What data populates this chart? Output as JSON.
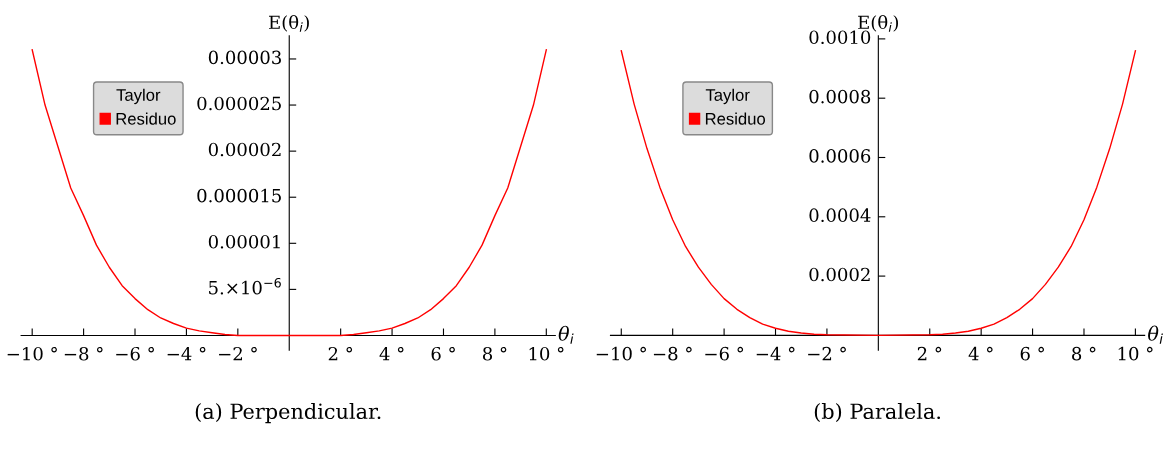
{
  "chart_data": [
    {
      "type": "line",
      "title": "(a) Perpendicular.",
      "xlabel": "θ$_{i}$",
      "ylabel": "E(θ$_{i}$)",
      "legend_title": "Taylor",
      "legend": "top left",
      "grid": false,
      "marker": "none",
      "line_style": "solid",
      "x": [
        -10,
        -9.5,
        -9,
        -8.5,
        -8,
        -7.5,
        -7,
        -6.5,
        -6,
        -5.5,
        -5,
        -4.5,
        -4,
        -3.5,
        -3,
        -2.5,
        -2,
        0,
        2,
        2.5,
        3,
        3.5,
        4,
        4.5,
        5,
        5.5,
        6,
        6.5,
        7,
        7.5,
        8,
        8.5,
        9,
        9.5,
        10
      ],
      "series": [
        {
          "name": "Residuo",
          "color": "#ff0000",
          "values": [
            3.1e-05,
            2.5e-05,
            2.05e-05,
            1.6e-05,
            1.3e-05,
            9.8e-06,
            7.4e-06,
            5.4e-06,
            4e-06,
            2.8e-06,
            1.9e-06,
            1.3e-06,
            8e-07,
            5e-07,
            3e-07,
            1e-07,
            0,
            0,
            0,
            1e-07,
            3e-07,
            5e-07,
            8e-07,
            1.3e-06,
            1.9e-06,
            2.8e-06,
            4e-06,
            5.4e-06,
            7.4e-06,
            9.8e-06,
            1.3e-05,
            1.6e-05,
            2.05e-05,
            2.5e-05,
            3.1e-05
          ]
        }
      ],
      "xlim": [
        -10.43,
        10.35
      ],
      "ylim": [
        -1.6e-06,
        3.25e-05
      ],
      "xticks": [
        {
          "value": -10,
          "label": "−10 °"
        },
        {
          "value": -8,
          "label": "−8 °"
        },
        {
          "value": -6,
          "label": "−6 °"
        },
        {
          "value": -4,
          "label": "−4 °"
        },
        {
          "value": -2,
          "label": "−2 °"
        },
        {
          "value": 2,
          "label": "2 °"
        },
        {
          "value": 4,
          "label": "4 °"
        },
        {
          "value": 6,
          "label": "6 °"
        },
        {
          "value": 8,
          "label": "8 °"
        },
        {
          "value": 10,
          "label": "10 °"
        }
      ],
      "yticks": [
        {
          "value": 5e-06,
          "label": "5.×10$^{−6}$"
        },
        {
          "value": 1e-05,
          "label": "0.00001"
        },
        {
          "value": 1.5e-05,
          "label": "0.000015"
        },
        {
          "value": 2e-05,
          "label": "0.00002"
        },
        {
          "value": 2.5e-05,
          "label": "0.000025"
        },
        {
          "value": 3e-05,
          "label": "0.00003"
        }
      ]
    },
    {
      "type": "line",
      "title": "(b) Paralela.",
      "xlabel": "θ$_{i}$",
      "ylabel": "E(θ$_{i}$)",
      "legend_title": "Taylor",
      "legend": "top left",
      "grid": false,
      "marker": "none",
      "line_style": "solid",
      "x": [
        -10,
        -9.5,
        -9,
        -8.5,
        -8,
        -7.5,
        -7,
        -6.5,
        -6,
        -5.5,
        -5,
        -4.5,
        -4,
        -3.5,
        -3,
        -2.5,
        -2,
        0,
        2,
        2.5,
        3,
        3.5,
        4,
        4.5,
        5,
        5.5,
        6,
        6.5,
        7,
        7.5,
        8,
        8.5,
        9,
        9.5,
        10
      ],
      "series": [
        {
          "name": "Residuo",
          "color": "#ff0000",
          "values": [
            0.00096,
            0.00078,
            0.00063,
            0.0005,
            0.00039,
            0.0003,
            0.00023,
            0.000172,
            0.000124,
            8.8e-05,
            6e-05,
            3.8e-05,
            2.4e-05,
            1.4e-05,
            8e-06,
            4e-06,
            2e-06,
            0,
            2e-06,
            4e-06,
            8e-06,
            1.4e-05,
            2.4e-05,
            3.8e-05,
            6e-05,
            8.8e-05,
            0.000124,
            0.000172,
            0.00023,
            0.0003,
            0.00039,
            0.0005,
            0.00063,
            0.00078,
            0.00096
          ]
        }
      ],
      "xlim": [
        -10.42,
        10.36
      ],
      "ylim": [
        -5e-05,
        0.00101
      ],
      "xticks": [
        {
          "value": -10,
          "label": "−10 °"
        },
        {
          "value": -8,
          "label": "−8 °"
        },
        {
          "value": -6,
          "label": "−6 °"
        },
        {
          "value": -4,
          "label": "−4 °"
        },
        {
          "value": -2,
          "label": "−2 °"
        },
        {
          "value": 2,
          "label": "2 °"
        },
        {
          "value": 4,
          "label": "4 °"
        },
        {
          "value": 6,
          "label": "6 °"
        },
        {
          "value": 8,
          "label": "8 °"
        },
        {
          "value": 10,
          "label": "10 °"
        }
      ],
      "yticks": [
        {
          "value": 0.0002,
          "label": "0.0002"
        },
        {
          "value": 0.0004,
          "label": "0.0004"
        },
        {
          "value": 0.0006,
          "label": "0.0006"
        },
        {
          "value": 0.0008,
          "label": "0.0008"
        },
        {
          "value": 0.001,
          "label": "0.0010"
        }
      ]
    }
  ]
}
